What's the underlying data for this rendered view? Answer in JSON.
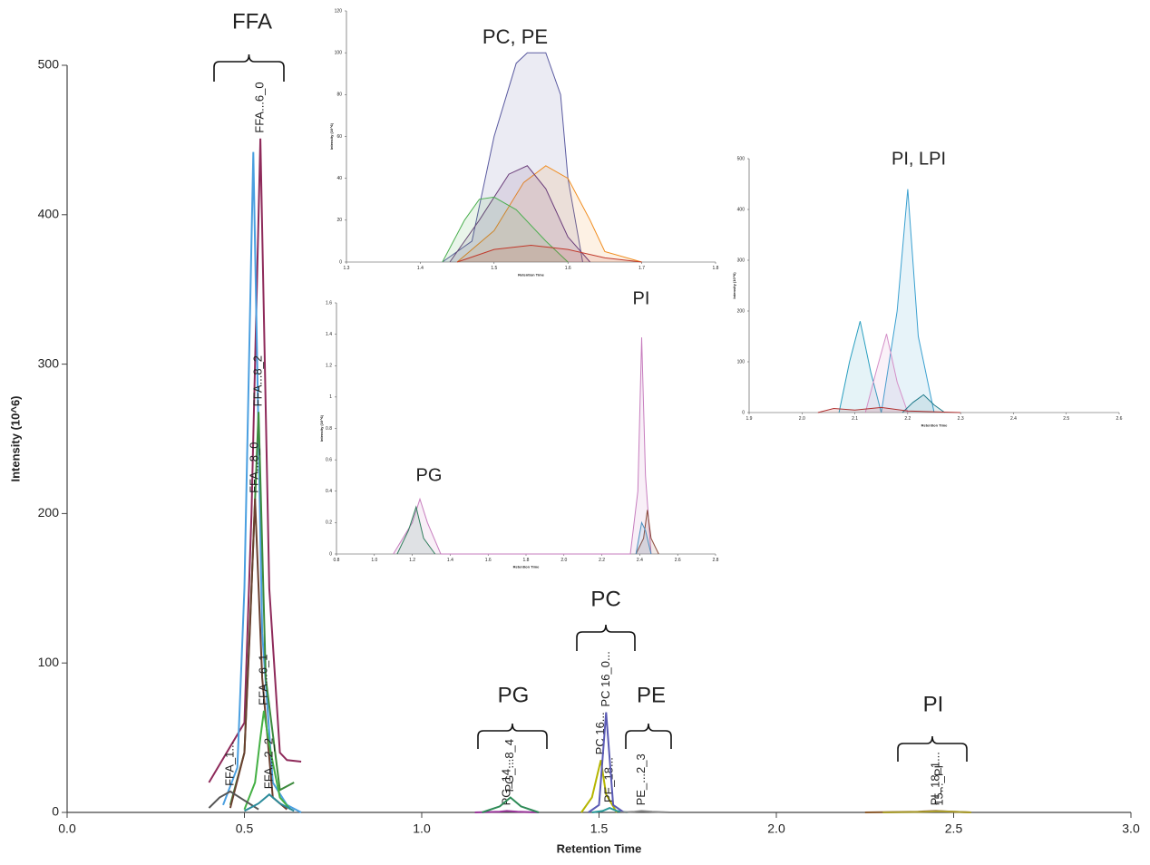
{
  "chart_data": [
    {
      "type": "line",
      "x_label": "Retention Time",
      "y_label": "Intensity (10^6)",
      "xlim": [
        0,
        3
      ],
      "ylim": [
        0,
        500
      ],
      "xticks": [
        {
          "value": 0,
          "label": "0.0"
        },
        {
          "value": 0.5,
          "label": "0.5"
        },
        {
          "value": 1,
          "label": "1.0"
        },
        {
          "value": 1.5,
          "label": "1.5"
        },
        {
          "value": 2,
          "label": "2.0"
        },
        {
          "value": 2.5,
          "label": "2.5"
        },
        {
          "value": 3,
          "label": "3.0"
        }
      ],
      "yticks": [
        0,
        100,
        200,
        300,
        400,
        500
      ],
      "annotations": [
        "FFA",
        "PG",
        "PC",
        "PE",
        "PI"
      ],
      "series": [
        {
          "name": "FFA...6_0",
          "color": "#8e2a5a",
          "x": [
            0.4,
            0.45,
            0.5,
            0.52,
            0.545,
            0.57,
            0.6,
            0.62,
            0.66
          ],
          "values": [
            20,
            40,
            60,
            200,
            451,
            150,
            40,
            35,
            34
          ]
        },
        {
          "color": "#4a9fe0",
          "x": [
            0.44,
            0.48,
            0.5,
            0.525,
            0.55,
            0.58,
            0.62,
            0.66
          ],
          "values": [
            5,
            30,
            150,
            442,
            120,
            20,
            5,
            0
          ]
        },
        {
          "name": "FFA...8_2",
          "color": "#3c8a3c",
          "x": [
            0.46,
            0.5,
            0.52,
            0.54,
            0.56,
            0.6,
            0.64
          ],
          "values": [
            5,
            40,
            150,
            268,
            90,
            15,
            20
          ]
        },
        {
          "name": "FFA...8_0",
          "color": "#6b4030",
          "x": [
            0.46,
            0.5,
            0.515,
            0.53,
            0.55,
            0.58,
            0.62
          ],
          "values": [
            3,
            40,
            120,
            210,
            90,
            10,
            2
          ]
        },
        {
          "name": "FFA...6_1",
          "color": "#44b044",
          "x": [
            0.5,
            0.53,
            0.545,
            0.555,
            0.57,
            0.6,
            0.63
          ],
          "values": [
            2,
            20,
            50,
            68,
            45,
            10,
            2
          ]
        },
        {
          "name": "FFA_1...",
          "color": "#555555",
          "x": [
            0.4,
            0.43,
            0.46,
            0.5,
            0.54
          ],
          "values": [
            3,
            10,
            14,
            8,
            2
          ]
        },
        {
          "name": "FFA...2_2",
          "color": "#2a8a9a",
          "x": [
            0.5,
            0.54,
            0.57,
            0.6,
            0.64
          ],
          "values": [
            1,
            6,
            12,
            6,
            1
          ]
        },
        {
          "name": "PG_14...",
          "color": "#993399",
          "x": [
            1.15,
            1.22,
            1.24,
            1.27,
            1.33
          ],
          "values": [
            0,
            0.5,
            1,
            0.5,
            0
          ]
        },
        {
          "name": "PG_...8_4",
          "color": "#2e8b57",
          "x": [
            1.17,
            1.22,
            1.25,
            1.28,
            1.33
          ],
          "values": [
            0,
            4,
            10,
            4,
            0
          ]
        },
        {
          "name": "PC 16...",
          "color": "#b5b500",
          "x": [
            1.45,
            1.48,
            1.505,
            1.52,
            1.55
          ],
          "values": [
            0,
            10,
            35,
            12,
            0
          ]
        },
        {
          "name": "PE_18...",
          "color": "#2a9a9a",
          "x": [
            1.48,
            1.51,
            1.53,
            1.55,
            1.58
          ],
          "values": [
            0,
            1,
            3,
            1,
            0
          ]
        },
        {
          "name": "PC 16_0...",
          "color": "#5a5ab4",
          "x": [
            1.47,
            1.5,
            1.52,
            1.54,
            1.57
          ],
          "values": [
            0,
            5,
            67,
            5,
            0
          ]
        },
        {
          "name": "PE_...2_3",
          "color": "#888888",
          "x": [
            1.56,
            1.6,
            1.62,
            1.65,
            1.7
          ],
          "values": [
            0,
            0.5,
            1,
            0.5,
            0
          ]
        },
        {
          "name": "PI_18_1...",
          "color": "#8b5a2b",
          "x": [
            2.25,
            2.4,
            2.45,
            2.5,
            2.55
          ],
          "values": [
            0,
            0.5,
            1,
            0.5,
            0
          ]
        },
        {
          "name": "15..._PI",
          "color": "#a89c2a",
          "x": [
            2.3,
            2.42,
            2.46,
            2.5,
            2.55
          ],
          "values": [
            0,
            0.4,
            0.8,
            0.4,
            0
          ]
        }
      ]
    },
    {
      "type": "line",
      "x_label": "Retention Time",
      "y_label": "Intensity (10^6)",
      "fill_area": true,
      "xlim": [
        1.3,
        1.8
      ],
      "ylim": [
        0,
        120
      ],
      "xticks": [
        1.3,
        1.4,
        1.5,
        1.6,
        1.7,
        1.8
      ],
      "yticks": [
        0,
        20,
        40,
        60,
        80,
        100,
        120
      ],
      "annotations": [
        "PC, PE"
      ],
      "series": [
        {
          "color": "#5a5aa0",
          "x": [
            1.43,
            1.47,
            1.5,
            1.53,
            1.545,
            1.57,
            1.59,
            1.6,
            1.62
          ],
          "values": [
            0,
            10,
            60,
            95,
            100,
            100,
            80,
            40,
            0
          ]
        },
        {
          "color": "#f08c1e",
          "x": [
            1.45,
            1.5,
            1.54,
            1.57,
            1.6,
            1.63,
            1.65,
            1.7
          ],
          "values": [
            0,
            15,
            38,
            46,
            40,
            20,
            5,
            0
          ]
        },
        {
          "color": "#6a3d7a",
          "x": [
            1.44,
            1.48,
            1.52,
            1.545,
            1.57,
            1.6,
            1.63
          ],
          "values": [
            0,
            20,
            42,
            46,
            35,
            12,
            0
          ]
        },
        {
          "color": "#4caf50",
          "x": [
            1.43,
            1.46,
            1.48,
            1.5,
            1.53,
            1.57,
            1.6
          ],
          "values": [
            0,
            20,
            30,
            31,
            25,
            10,
            0
          ]
        },
        {
          "color": "#c0392b",
          "x": [
            1.45,
            1.5,
            1.55,
            1.6,
            1.65,
            1.7
          ],
          "values": [
            0,
            6,
            8,
            6,
            2,
            0
          ]
        }
      ]
    },
    {
      "type": "line",
      "x_label": "Retention Time",
      "y_label": "Intensity (10^6)",
      "fill_area": true,
      "xlim": [
        0.8,
        2.8
      ],
      "ylim": [
        0,
        1.6
      ],
      "xticks": [
        0.8,
        {
          "value": 1,
          "label": "1.0"
        },
        1.2,
        1.4,
        1.6,
        1.8,
        {
          "value": 2,
          "label": "2.0"
        },
        2.2,
        2.4,
        2.6,
        2.8
      ],
      "yticks": [
        0,
        0.2,
        0.4,
        0.6,
        0.8,
        1,
        1.2,
        1.4,
        1.6
      ],
      "annotations": [
        "PG",
        "PI"
      ],
      "series": [
        {
          "color": "#c77dbe",
          "x": [
            1.1,
            1.2,
            1.24,
            1.28,
            1.35,
            2.35,
            2.39,
            2.41,
            2.43,
            2.46
          ],
          "values": [
            0,
            0.2,
            0.35,
            0.2,
            0,
            0,
            0.4,
            1.38,
            0.5,
            0
          ]
        },
        {
          "color": "#2e7d5b",
          "x": [
            1.12,
            1.18,
            1.22,
            1.26,
            1.32
          ],
          "values": [
            0,
            0.15,
            0.3,
            0.1,
            0
          ]
        },
        {
          "color": "#8b4a3a",
          "x": [
            2.38,
            2.42,
            2.44,
            2.46,
            2.5
          ],
          "values": [
            0,
            0.1,
            0.28,
            0.1,
            0
          ]
        },
        {
          "color": "#4a90c0",
          "x": [
            2.38,
            2.41,
            2.43,
            2.46
          ],
          "values": [
            0,
            0.2,
            0.15,
            0
          ]
        }
      ]
    },
    {
      "type": "line",
      "x_label": "Retention Time",
      "y_label": "Intensity (10^6)",
      "fill_area": true,
      "xlim": [
        1.9,
        2.6
      ],
      "ylim": [
        0,
        500
      ],
      "xticks": [
        1.9,
        {
          "value": 2,
          "label": "2.0"
        },
        2.1,
        2.2,
        2.3,
        2.4,
        2.5,
        2.6
      ],
      "yticks": [
        0,
        100,
        200,
        300,
        400,
        500
      ],
      "annotations": [
        "PI, LPI"
      ],
      "series": [
        {
          "color": "#3aa0d0",
          "x": [
            2.15,
            2.18,
            2.2,
            2.22,
            2.25
          ],
          "values": [
            0,
            200,
            440,
            150,
            0
          ]
        },
        {
          "color": "#2a9fc0",
          "x": [
            2.07,
            2.09,
            2.11,
            2.13,
            2.15
          ],
          "values": [
            0,
            100,
            180,
            80,
            0
          ]
        },
        {
          "color": "#d48fc8",
          "x": [
            2.12,
            2.14,
            2.16,
            2.18,
            2.2
          ],
          "values": [
            0,
            80,
            155,
            60,
            0
          ]
        },
        {
          "color": "#1f7a8a",
          "x": [
            2.19,
            2.21,
            2.23,
            2.25,
            2.27
          ],
          "values": [
            0,
            20,
            35,
            15,
            0
          ]
        },
        {
          "color": "#b03030",
          "x": [
            2.03,
            2.06,
            2.1,
            2.15,
            2.2,
            2.3
          ],
          "values": [
            0,
            8,
            5,
            10,
            3,
            0
          ]
        }
      ]
    }
  ]
}
